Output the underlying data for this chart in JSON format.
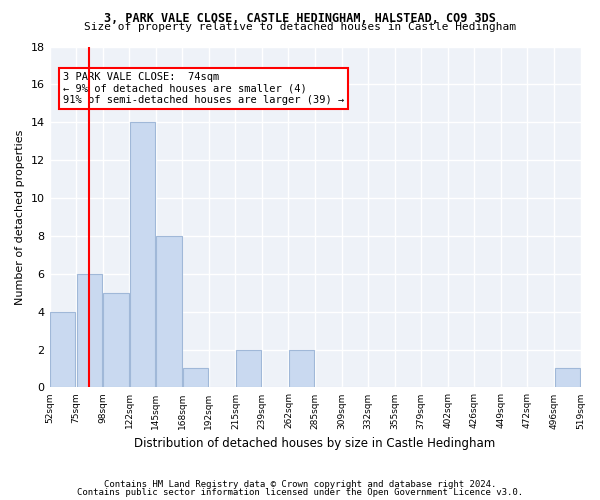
{
  "title1": "3, PARK VALE CLOSE, CASTLE HEDINGHAM, HALSTEAD, CO9 3DS",
  "title2": "Size of property relative to detached houses in Castle Hedingham",
  "xlabel": "Distribution of detached houses by size in Castle Hedingham",
  "ylabel": "Number of detached properties",
  "footer1": "Contains HM Land Registry data © Crown copyright and database right 2024.",
  "footer2": "Contains public sector information licensed under the Open Government Licence v3.0.",
  "bin_labels": [
    "52sqm",
    "75sqm",
    "98sqm",
    "122sqm",
    "145sqm",
    "168sqm",
    "192sqm",
    "215sqm",
    "239sqm",
    "262sqm",
    "285sqm",
    "309sqm",
    "332sqm",
    "355sqm",
    "379sqm",
    "402sqm",
    "426sqm",
    "449sqm",
    "472sqm",
    "496sqm",
    "519sqm"
  ],
  "values": [
    4,
    6,
    5,
    14,
    8,
    1,
    0,
    2,
    0,
    2,
    0,
    0,
    0,
    0,
    0,
    0,
    0,
    0,
    0,
    1
  ],
  "bar_color": "#c9d9f0",
  "bar_edge_color": "#a0b8d8",
  "vline_x": 1,
  "annotation_box_lines": [
    "3 PARK VALE CLOSE:  74sqm",
    "← 9% of detached houses are smaller (4)",
    "91% of semi-detached houses are larger (39) →"
  ],
  "annotation_box_color": "white",
  "annotation_box_edge_color": "red",
  "vline_color": "red",
  "ylim": [
    0,
    18
  ],
  "yticks": [
    0,
    2,
    4,
    6,
    8,
    10,
    12,
    14,
    16,
    18
  ],
  "background_color": "#eef2f8",
  "grid_color": "white"
}
